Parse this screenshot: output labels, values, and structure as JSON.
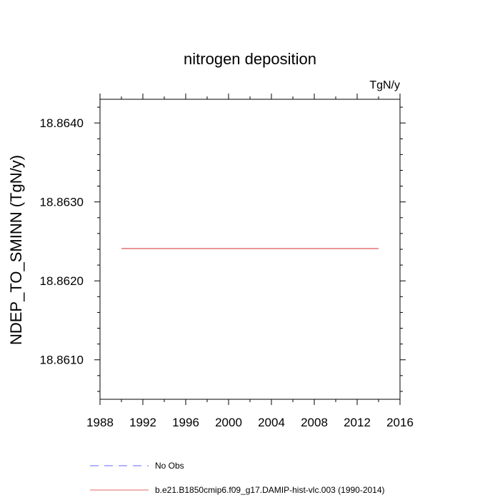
{
  "chart_data": {
    "type": "line",
    "title": "nitrogen deposition",
    "units_label": "TgN/y",
    "xlabel": "",
    "ylabel": "NDEP_TO_SMINN  (TgN/y)",
    "xlim": [
      1988,
      2016
    ],
    "ylim": [
      18.8605,
      18.8643
    ],
    "x_ticks": [
      1988,
      1992,
      1996,
      2000,
      2004,
      2008,
      2012,
      2016
    ],
    "x_tick_labels": [
      "1988",
      "1992",
      "1996",
      "2000",
      "2004",
      "2008",
      "2012",
      "2016"
    ],
    "y_ticks": [
      18.861,
      18.862,
      18.863,
      18.864
    ],
    "y_tick_labels": [
      "18.8610",
      "18.8620",
      "18.8630",
      "18.8640"
    ],
    "grid": false,
    "legend_position": "bottom",
    "series": [
      {
        "name": "No Obs",
        "color": "#6666ff",
        "dash": "dashed",
        "x": [],
        "y": []
      },
      {
        "name": "b.e21.B1850cmip6.f09_g17.DAMIP-hist-vlc.003 (1990-2014)",
        "color": "#e06666",
        "dash": "solid",
        "x": [
          1990,
          2014
        ],
        "y": [
          18.86241,
          18.86241
        ]
      }
    ]
  }
}
